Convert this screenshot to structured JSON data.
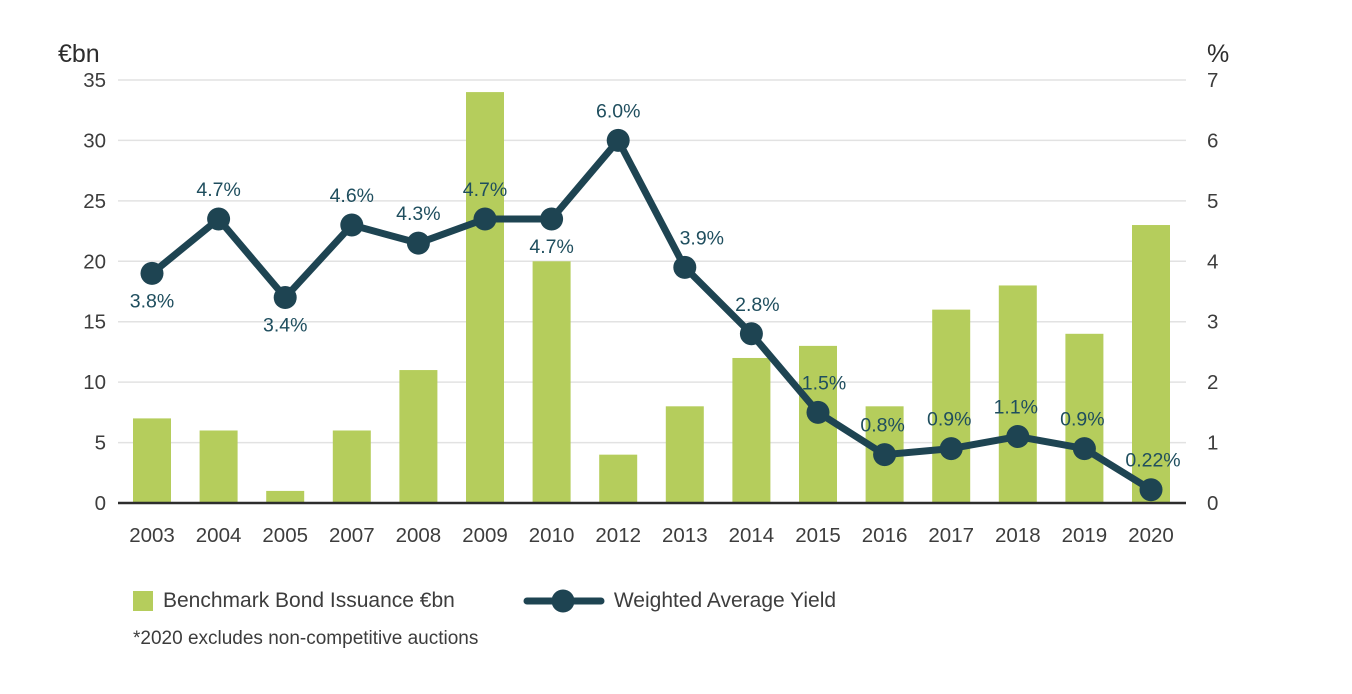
{
  "chart_data": {
    "type": "bar+line combo",
    "categories": [
      "2003",
      "2004",
      "2005",
      "2007",
      "2008",
      "2009",
      "2010",
      "2012",
      "2013",
      "2014",
      "2015",
      "2016",
      "2017",
      "2018",
      "2019",
      "2020"
    ],
    "series": [
      {
        "name": "Benchmark Bond Issuance €bn",
        "type": "bar",
        "axis": "left",
        "values": [
          7,
          6,
          1,
          6,
          11,
          34,
          20,
          4,
          8,
          12,
          13,
          8,
          16,
          18,
          14,
          23
        ]
      },
      {
        "name": "Weighted Average Yield",
        "type": "line",
        "axis": "right",
        "values": [
          3.8,
          4.7,
          3.4,
          4.6,
          4.3,
          4.7,
          4.7,
          6.0,
          3.9,
          2.8,
          1.5,
          0.8,
          0.9,
          1.1,
          0.9,
          0.22
        ],
        "point_labels": [
          "3.8%",
          "4.7%",
          "3.4%",
          "4.6%",
          "4.3%",
          "4.7%",
          "4.7%",
          "6.0%",
          "3.9%",
          "2.8%",
          "1.5%",
          "0.8%",
          "0.9%",
          "1.1%",
          "0.9%",
          "0.22%"
        ],
        "label_pos": [
          "below",
          "above",
          "below",
          "above",
          "above",
          "above",
          "below",
          "above",
          "above",
          "above",
          "above",
          "above",
          "above",
          "above",
          "above",
          "above"
        ],
        "label_dx": [
          0,
          0,
          0,
          0,
          0,
          0,
          0,
          0,
          17,
          6,
          6,
          -2,
          -2,
          -2,
          -2,
          2
        ]
      }
    ],
    "left_axis": {
      "unit": "€bn",
      "ticks": [
        0,
        5,
        10,
        15,
        20,
        25,
        30,
        35
      ],
      "min": 0,
      "max": 35
    },
    "right_axis": {
      "unit": "%",
      "ticks": [
        0,
        1,
        2,
        3,
        4,
        5,
        6,
        7
      ],
      "min": 0,
      "max": 7
    },
    "grid": true,
    "legend_position": "bottom",
    "title": ""
  },
  "colors": {
    "bar": "#b5cd5c",
    "line": "#1e4452",
    "data_label": "#1f4e5e",
    "axis_text": "#3d3d3d",
    "grid": "#e2e2e2",
    "axis_line": "#2d2d2d",
    "background": "#ffffff"
  },
  "footnote": "*2020 excludes non-competitive auctions"
}
